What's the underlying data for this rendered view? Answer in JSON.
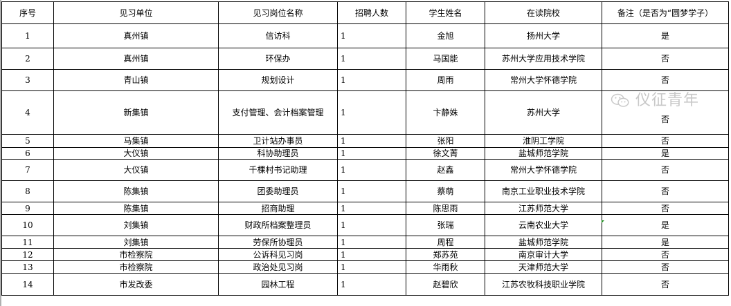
{
  "headers": [
    "序号",
    "见习单位",
    "见习岗位名称",
    "招聘人数",
    "学生姓名",
    "在读院校",
    "备注（是否为“圆梦学子）"
  ],
  "rows": [
    [
      "1",
      "真州镇",
      "信访科",
      "1",
      "金旭",
      "扬州大学",
      "是"
    ],
    [
      "2",
      "真州镇",
      "环保办",
      "1",
      "马国能",
      "苏州大学应用技术学院",
      "否"
    ],
    [
      "3",
      "青山镇",
      "规划设计",
      "1",
      "周雨",
      "常州大学怀德学院",
      "否"
    ],
    [
      "4",
      "新集镇",
      "支付管理、会计档案管理",
      "1",
      "卞静姝",
      "苏州大学",
      "否"
    ],
    [
      "5",
      "马集镇",
      "卫计站办事员",
      "1",
      "张阳",
      "淮阴工学院",
      "否"
    ],
    [
      "6",
      "大仪镇",
      "科协助理员",
      "1",
      "徐文菁",
      "盐城师范学院",
      "是"
    ],
    [
      "7",
      "大仪镇",
      "千棵村书记助理",
      "1",
      "赵鑫",
      "常州大学怀德学院",
      "否"
    ],
    [
      "8",
      "陈集镇",
      "团委助理员",
      "1",
      "蔡萌",
      "南京工业职业技术学院",
      "否"
    ],
    [
      "9",
      "陈集镇",
      "招商助理",
      "1",
      "陈思雨",
      "江苏师范大学",
      "否"
    ],
    [
      "10",
      "刘集镇",
      "财政所档案整理员",
      "1",
      "张瑞",
      "云南农业大学",
      "是"
    ],
    [
      "11",
      "刘集镇",
      "劳保所协理员",
      "1",
      "周程",
      "盐城师范学院",
      "是"
    ],
    [
      "12",
      "市检察院",
      "公诉科见习岗",
      "1",
      "郑苏苑",
      "南京审计大学",
      "否"
    ],
    [
      "13",
      "市检察院",
      "政治处见习岗",
      "1",
      "华雨秋",
      "天津师范大学",
      "否"
    ],
    [
      "14",
      "市发改委",
      "园林工程",
      "1",
      "赵碧欣",
      "江苏农牧科技职业学院",
      "否"
    ]
  ],
  "watermark": {
    "text": "仪征青年",
    "icon": "wechat-icon"
  }
}
